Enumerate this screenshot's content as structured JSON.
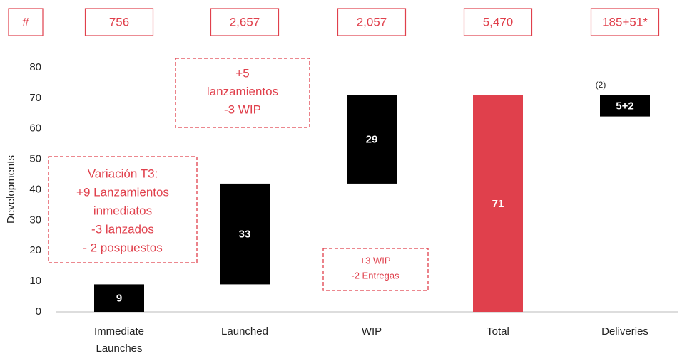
{
  "chart_data": {
    "type": "waterfall",
    "header_row": [
      "#",
      "756",
      "2,657",
      "2,057",
      "5,470",
      "185+51*"
    ],
    "y_label": "Developments",
    "categories": [
      [
        "Immediate",
        "Launches"
      ],
      [
        "Launched"
      ],
      [
        "WIP"
      ],
      [
        "Total"
      ],
      [
        "Deliveries"
      ]
    ],
    "values": [
      9,
      33,
      29,
      71,
      7
    ],
    "value_labels": [
      "9",
      "33",
      "29",
      "71",
      "5+2"
    ],
    "measures": [
      "relative",
      "relative",
      "relative",
      "total",
      "drop"
    ],
    "colors": [
      "#000000",
      "#000000",
      "#000000",
      "#e0404c",
      "#000000"
    ],
    "ylim": [
      0,
      80
    ],
    "yticks": [
      0,
      10,
      20,
      30,
      40,
      50,
      60,
      70,
      80
    ],
    "annotations": [
      {
        "lines": [
          "+5",
          "lanzamientos",
          "-3 WIP"
        ]
      },
      {
        "lines": [
          "Variación T3:",
          "+9 Lanzamientos",
          "inmediatos",
          "-3 lanzados",
          "- 2 pospuestos"
        ]
      },
      {
        "lines": [
          "+3 WIP",
          "-2 Entregas"
        ]
      },
      {
        "lines": [
          "(2)"
        ]
      }
    ],
    "accent_color": "#e0404c"
  }
}
